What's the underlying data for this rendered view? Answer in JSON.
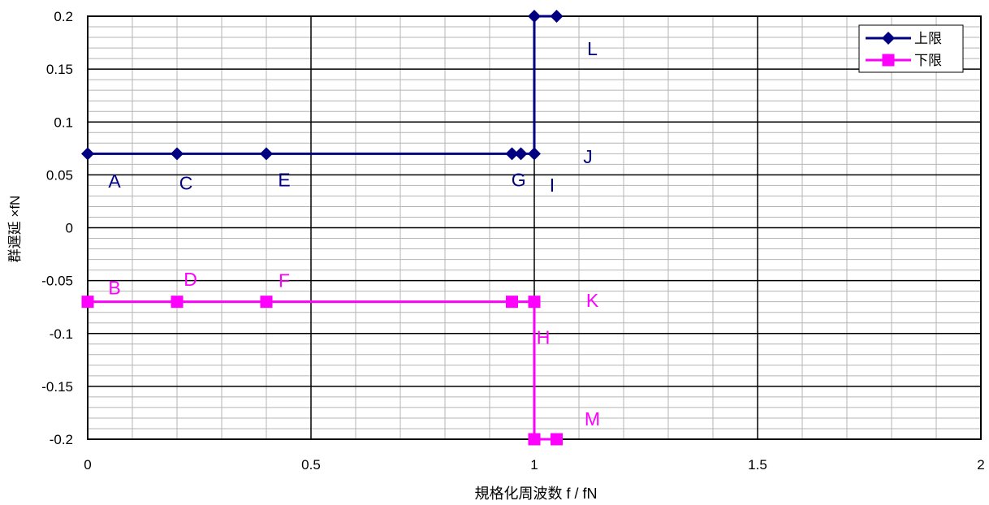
{
  "chart_data": {
    "type": "line",
    "xlabel": "規格化周波数 f / fN",
    "ylabel": "群遅延 ×fN",
    "xlim": [
      0,
      2
    ],
    "ylim": [
      -0.2,
      0.2
    ],
    "x_ticks": [
      0,
      0.5,
      1,
      1.5,
      2
    ],
    "x_tick_labels": [
      "0",
      "0.5",
      "1",
      "1.5",
      "2"
    ],
    "y_ticks": [
      0.2,
      0.15,
      0.1,
      0.05,
      0,
      -0.05,
      -0.1,
      -0.15,
      -0.2
    ],
    "y_tick_labels": [
      "0.2",
      "0.15",
      "0.1",
      "0.05",
      "0",
      "-0.05",
      "-0.1",
      "-0.15",
      "-0.2"
    ],
    "grid": {
      "major": true,
      "minor": true
    },
    "legend_position": "top-right",
    "series": [
      {
        "name": "上限",
        "color": "#000080",
        "marker": "diamond",
        "x": [
          0,
          0.2,
          0.4,
          0.95,
          0.97,
          1.0,
          1.0,
          1.05
        ],
        "y": [
          0.07,
          0.07,
          0.07,
          0.07,
          0.07,
          0.07,
          0.2,
          0.2
        ]
      },
      {
        "name": "下限",
        "color": "#FF00FF",
        "marker": "square",
        "x": [
          0,
          0.2,
          0.4,
          0.95,
          1.0,
          1.0,
          1.05
        ],
        "y": [
          -0.07,
          -0.07,
          -0.07,
          -0.07,
          -0.07,
          -0.2,
          -0.2
        ]
      }
    ],
    "annotations": [
      {
        "text": "A",
        "x": 0.06,
        "y": 0.045,
        "series": 0
      },
      {
        "text": "C",
        "x": 0.22,
        "y": 0.043,
        "series": 0
      },
      {
        "text": "E",
        "x": 0.44,
        "y": 0.046,
        "series": 0
      },
      {
        "text": "G",
        "x": 0.965,
        "y": 0.046,
        "series": 0
      },
      {
        "text": "I",
        "x": 1.04,
        "y": 0.041,
        "series": 0
      },
      {
        "text": "J",
        "x": 1.12,
        "y": 0.068,
        "series": 0
      },
      {
        "text": "L",
        "x": 1.13,
        "y": 0.17,
        "series": 0
      },
      {
        "text": "B",
        "x": 0.06,
        "y": -0.056,
        "series": 1
      },
      {
        "text": "D",
        "x": 0.23,
        "y": -0.048,
        "series": 1
      },
      {
        "text": "F",
        "x": 0.44,
        "y": -0.049,
        "series": 1
      },
      {
        "text": "K",
        "x": 1.13,
        "y": -0.068,
        "series": 1
      },
      {
        "text": "H",
        "x": 1.02,
        "y": -0.103,
        "series": 1
      },
      {
        "text": "M",
        "x": 1.13,
        "y": -0.18,
        "series": 1
      }
    ]
  }
}
